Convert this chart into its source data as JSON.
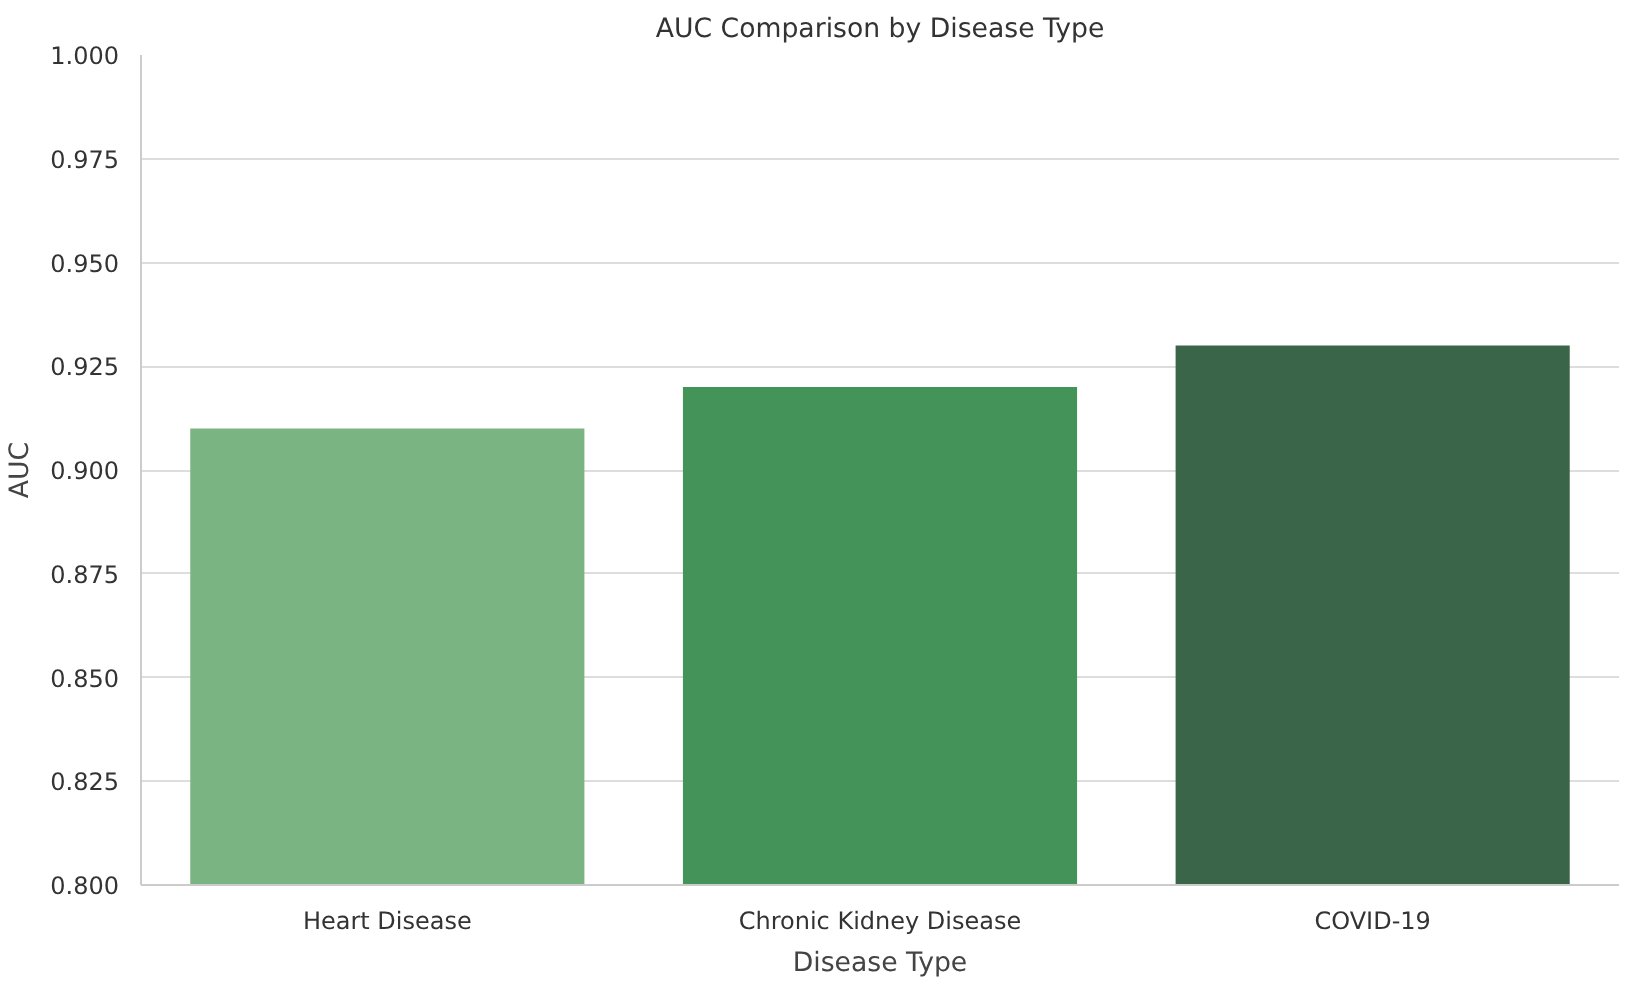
{
  "chart_data": {
    "type": "bar",
    "title": "AUC Comparison by Disease Type",
    "xlabel": "Disease Type",
    "ylabel": "AUC",
    "categories": [
      "Heart Disease",
      "Chronic Kidney Disease",
      "COVID-19"
    ],
    "values": [
      0.91,
      0.92,
      0.93
    ],
    "colors": [
      "#7bb483",
      "#44945a",
      "#3b6549"
    ],
    "ylim": [
      0.8,
      1.0
    ],
    "yticks": [
      {
        "value": 0.8,
        "label": "0.800"
      },
      {
        "value": 0.825,
        "label": "0.825"
      },
      {
        "value": 0.85,
        "label": "0.850"
      },
      {
        "value": 0.875,
        "label": "0.875"
      },
      {
        "value": 0.9,
        "label": "0.900"
      },
      {
        "value": 0.925,
        "label": "0.925"
      },
      {
        "value": 0.95,
        "label": "0.950"
      },
      {
        "value": 0.975,
        "label": "0.975"
      },
      {
        "value": 1.0,
        "label": "1.000"
      }
    ],
    "grid": "y"
  }
}
